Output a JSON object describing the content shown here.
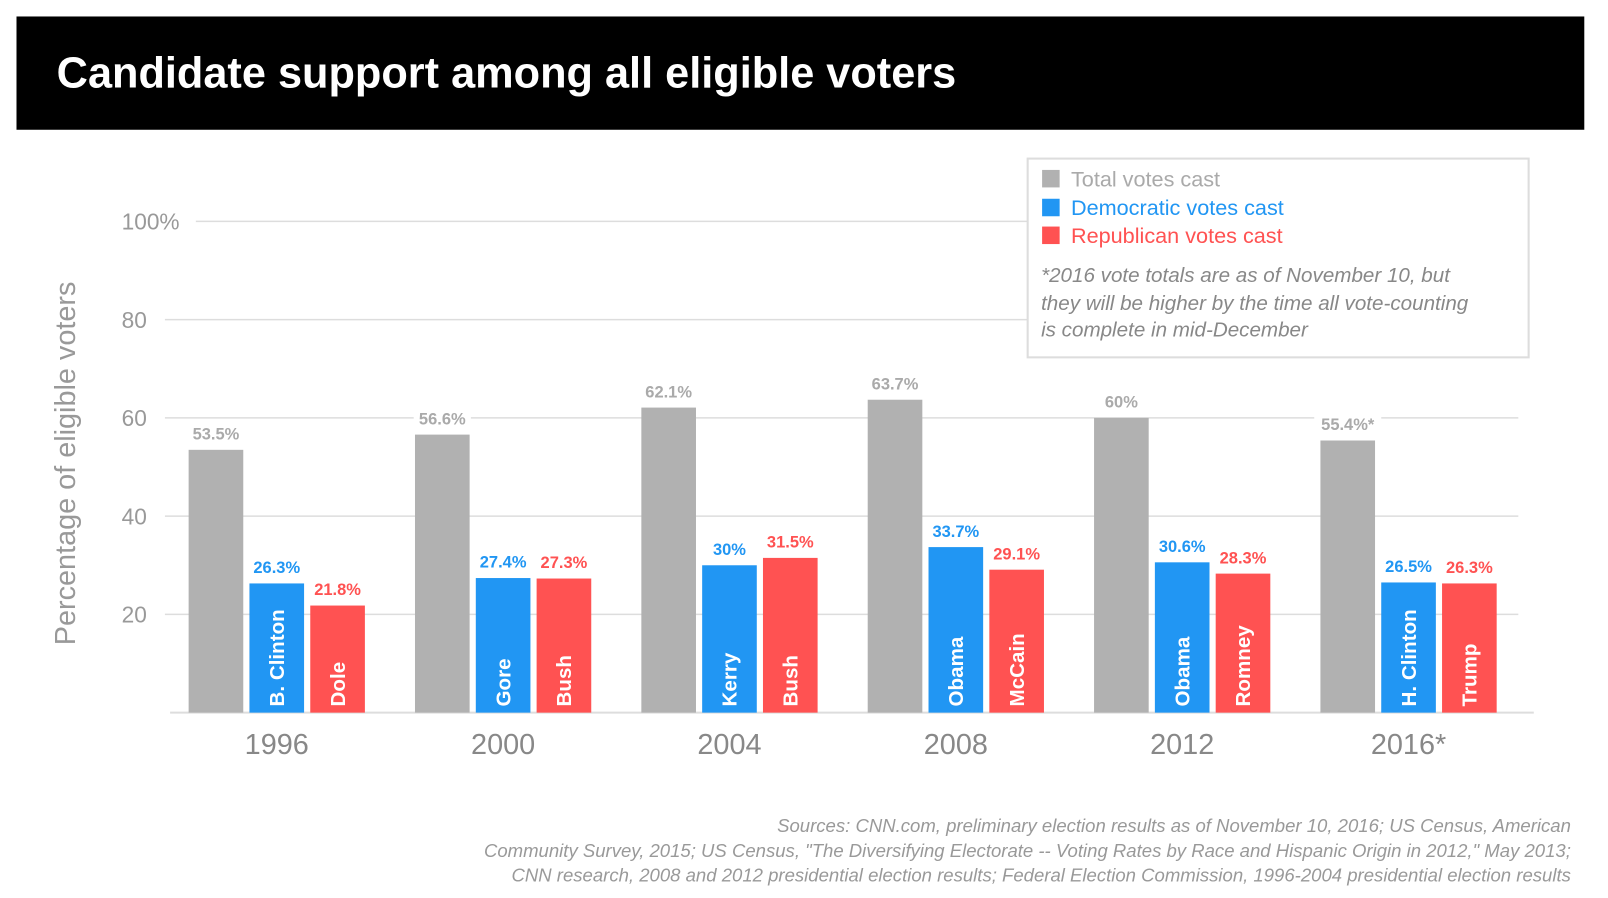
{
  "header": {
    "title": "Candidate support among all eligible voters"
  },
  "colors": {
    "total": "#b1b1b1",
    "dem": "#2196f3",
    "rep": "#ff5252",
    "header_bg": "#000000"
  },
  "chart_data": {
    "type": "bar",
    "title": "Candidate support among all eligible voters",
    "ylabel": "Percentage of eligible voters",
    "ylim": [
      0,
      100
    ],
    "yticks": [
      20,
      40,
      60,
      80,
      100
    ],
    "ytick_labels": [
      "20",
      "40",
      "60",
      "80",
      "100%"
    ],
    "grid": true,
    "legend_position": "top-right",
    "categories": [
      "1996",
      "2000",
      "2004",
      "2008",
      "2012",
      "2016*"
    ],
    "series": [
      {
        "name": "Total votes cast",
        "key": "total",
        "values": [
          53.5,
          56.6,
          62.1,
          63.7,
          60,
          55.4
        ],
        "labels": [
          "53.5%",
          "56.6%",
          "62.1%",
          "63.7%",
          "60%",
          "55.4%*"
        ]
      },
      {
        "name": "Democratic votes cast",
        "key": "dem",
        "values": [
          26.3,
          27.4,
          30,
          33.7,
          30.6,
          26.5
        ],
        "labels": [
          "26.3%",
          "27.4%",
          "30%",
          "33.7%",
          "30.6%",
          "26.5%"
        ],
        "candidates": [
          "B. Clinton",
          "Gore",
          "Kerry",
          "Obama",
          "Obama",
          "H. Clinton"
        ]
      },
      {
        "name": "Republican votes cast",
        "key": "rep",
        "values": [
          21.8,
          27.3,
          31.5,
          29.1,
          28.3,
          26.3
        ],
        "labels": [
          "21.8%",
          "27.3%",
          "31.5%",
          "29.1%",
          "28.3%",
          "26.3%"
        ],
        "candidates": [
          "Dole",
          "Bush",
          "Bush",
          "McCain",
          "Romney",
          "Trump"
        ]
      }
    ],
    "note": [
      "*2016 vote totals are as of November 10, but",
      "they will be higher by the time all vote-counting",
      "is complete in mid-December"
    ]
  },
  "sources": [
    "Sources: CNN.com, preliminary election results as of November 10, 2016; US Census, American",
    "Community Survey, 2015; US Census, \"The Diversifying Electorate -- Voting Rates by Race and Hispanic Origin in 2012,\" May 2013;",
    "CNN research, 2008 and 2012 presidential election results; Federal Election Commission, 1996-2004 presidential election results"
  ]
}
